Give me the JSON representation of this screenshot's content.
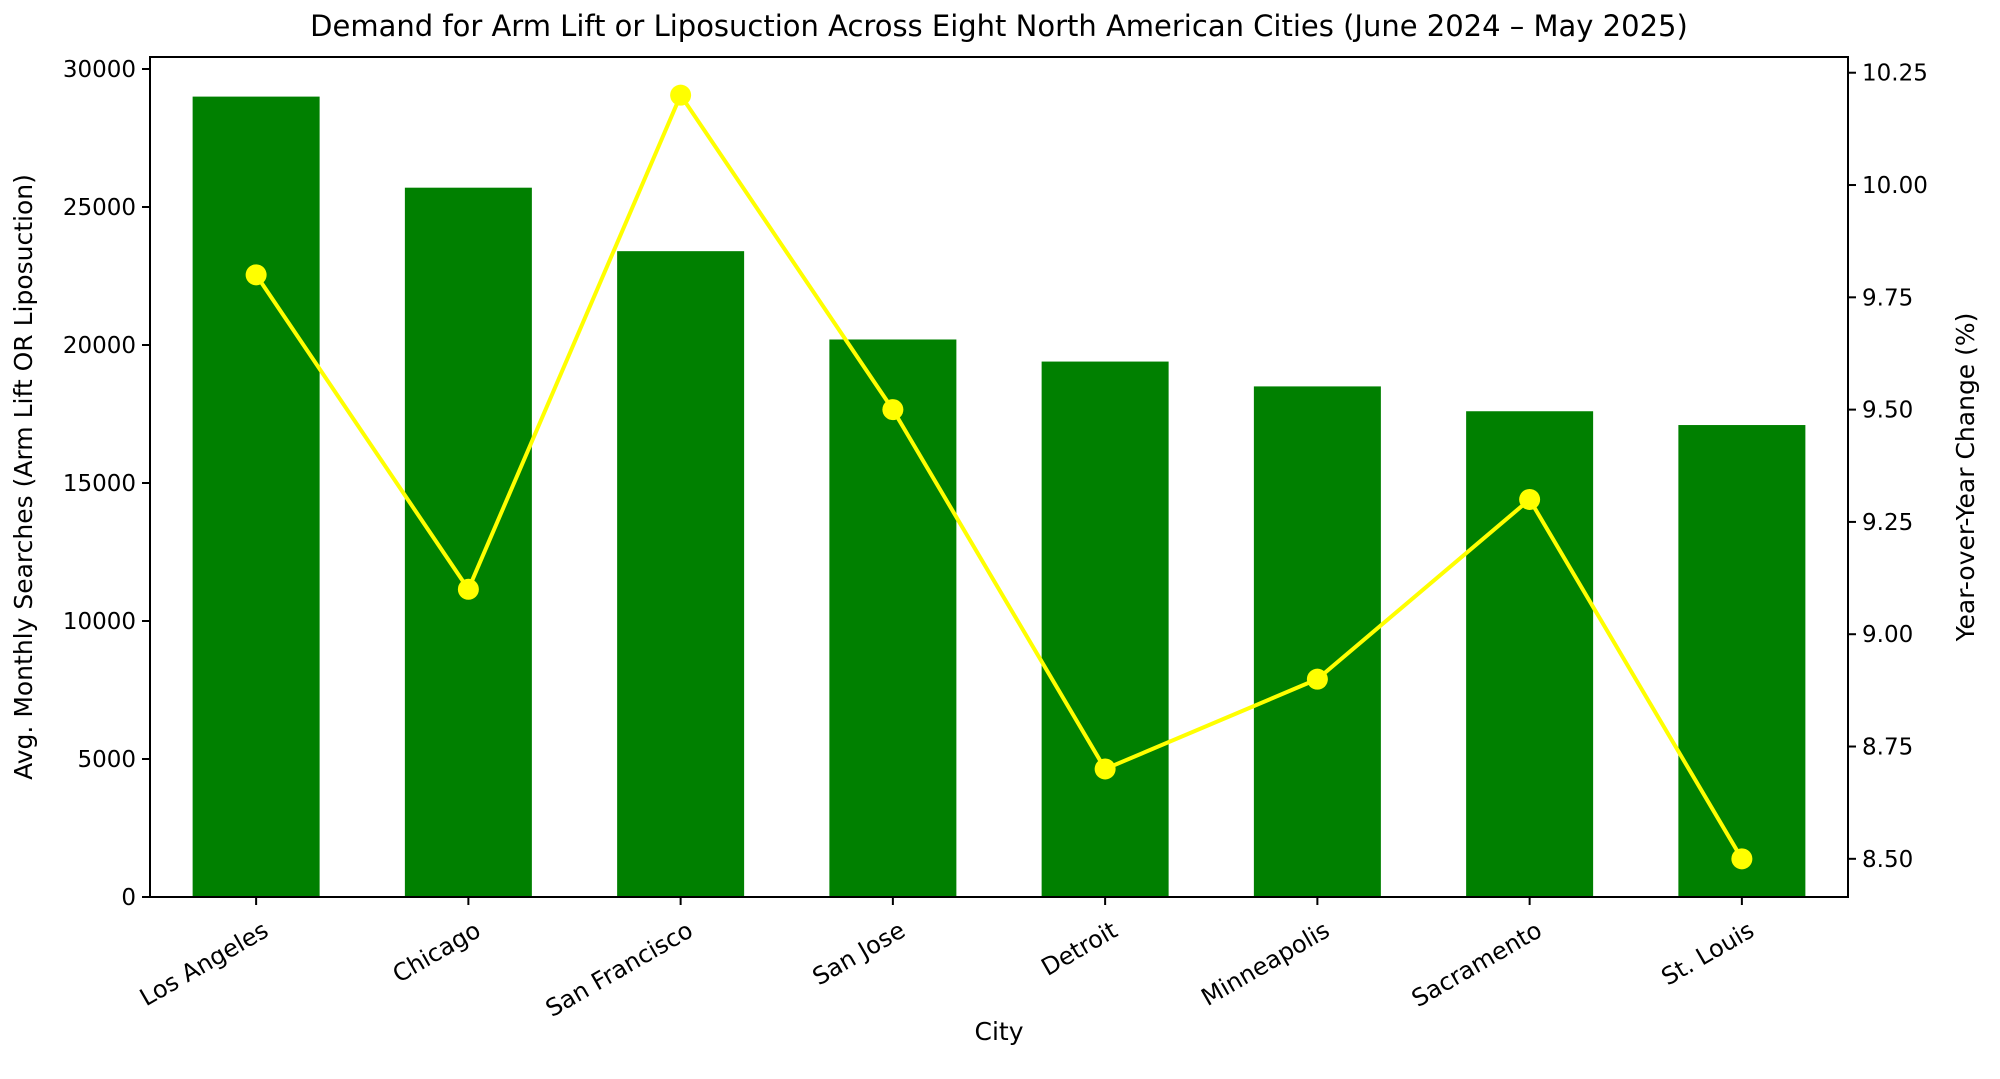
{
  "chart_data": {
    "type": "bar",
    "combo": "bar+line dual axis",
    "title": "Demand for Arm Lift or Liposuction Across Eight North American Cities (June 2024 – May 2025)",
    "xlabel": "City",
    "ylabel_left": "Avg. Monthly Searches (Arm Lift OR Liposuction)",
    "ylabel_right": "Year-over-Year Change (%)",
    "categories": [
      "Los Angeles",
      "Chicago",
      "San Francisco",
      "San Jose",
      "Detroit",
      "Minneapolis",
      "Sacramento",
      "St. Louis"
    ],
    "series": [
      {
        "name": "Avg. Monthly Searches (Arm Lift OR Liposuction)",
        "chart_type": "bar",
        "axis": "left",
        "color": "#008000",
        "values": [
          29000,
          25700,
          23400,
          20200,
          19400,
          18500,
          17600,
          17100
        ]
      },
      {
        "name": "Year-over-Year Change (%)",
        "chart_type": "line",
        "axis": "right",
        "color": "#FFFF00",
        "marker": "circle",
        "values": [
          9.8,
          9.1,
          10.2,
          9.5,
          8.7,
          8.9,
          9.3,
          8.5
        ]
      }
    ],
    "left_axis": {
      "tick_values": [
        0,
        5000,
        10000,
        15000,
        20000,
        25000,
        30000
      ],
      "tick_labels": [
        "0",
        "5000",
        "10000",
        "15000",
        "20000",
        "25000",
        "30000"
      ],
      "range": [
        0,
        30435
      ]
    },
    "right_axis": {
      "tick_values": [
        8.5,
        8.75,
        9.0,
        9.25,
        9.5,
        9.75,
        10.0,
        10.25
      ],
      "tick_labels": [
        "8.50",
        "8.75",
        "9.00",
        "9.25",
        "9.50",
        "9.75",
        "10.00",
        "10.25"
      ],
      "range": [
        8.415,
        10.285
      ]
    },
    "x_tick_rotation_deg": 30,
    "grid": false,
    "legend_position": "none",
    "background": "#FFFFFF",
    "colors": {
      "bar": "#008000",
      "line": "#FFFF00",
      "axis": "#000000",
      "text": "#000000"
    }
  }
}
